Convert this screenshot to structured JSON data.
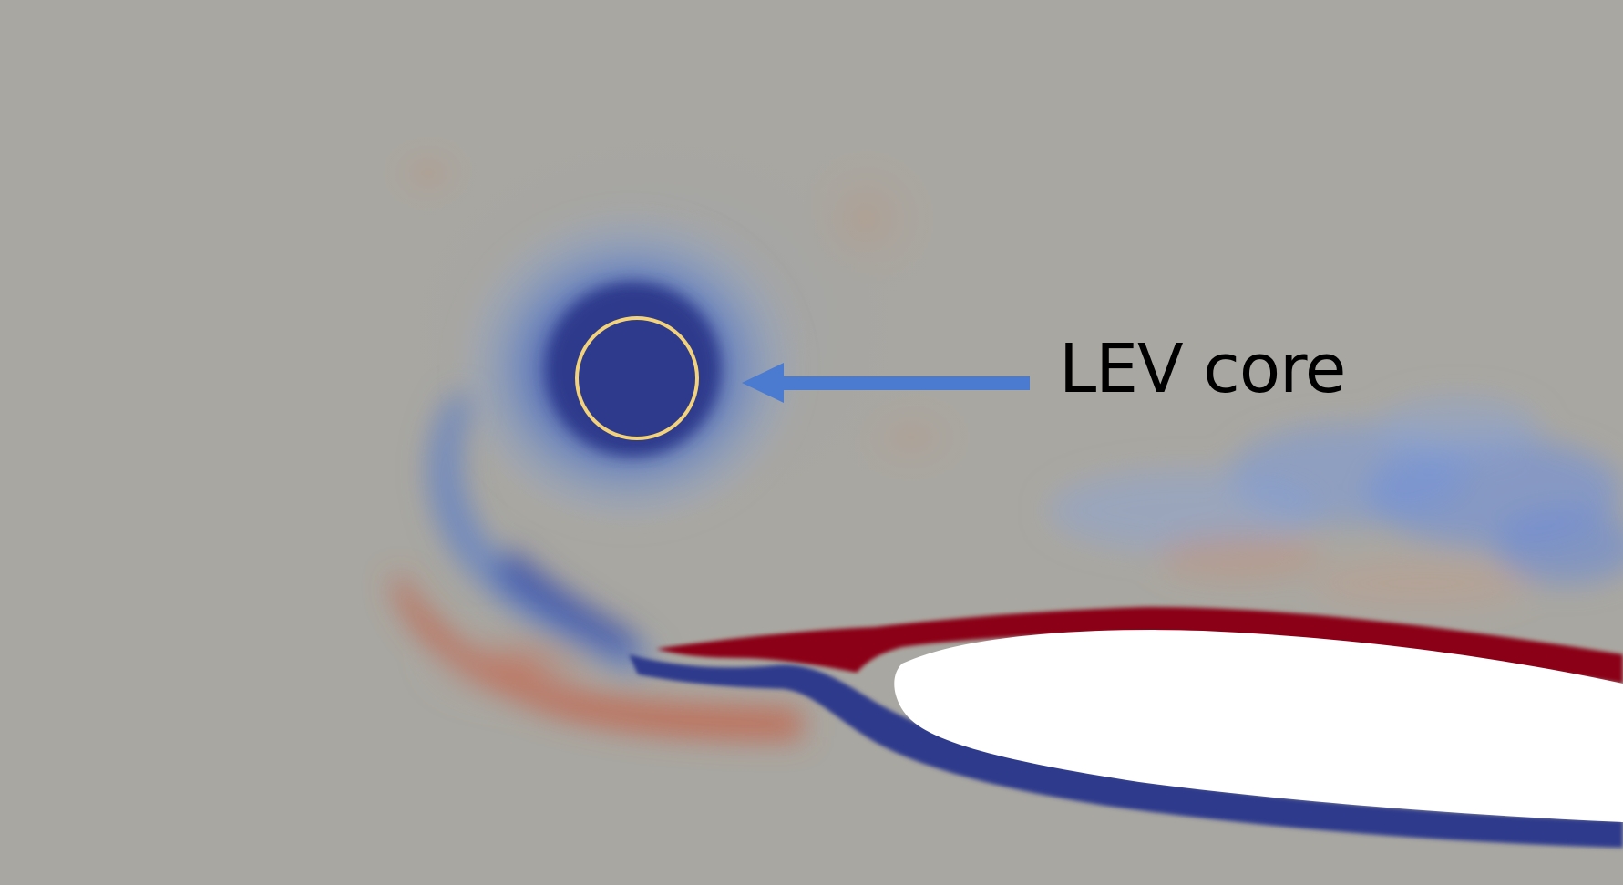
{
  "annotation": {
    "label": "LEV core"
  },
  "colors": {
    "background": "#a9a7a1",
    "negative_vorticity": "#2e3a8c",
    "positive_vorticity": "#8b0018",
    "airfoil": "#ffffff",
    "core_marker_outline": "#f2d27a",
    "arrow": "#4a7bd0",
    "label_text": "#000000"
  }
}
